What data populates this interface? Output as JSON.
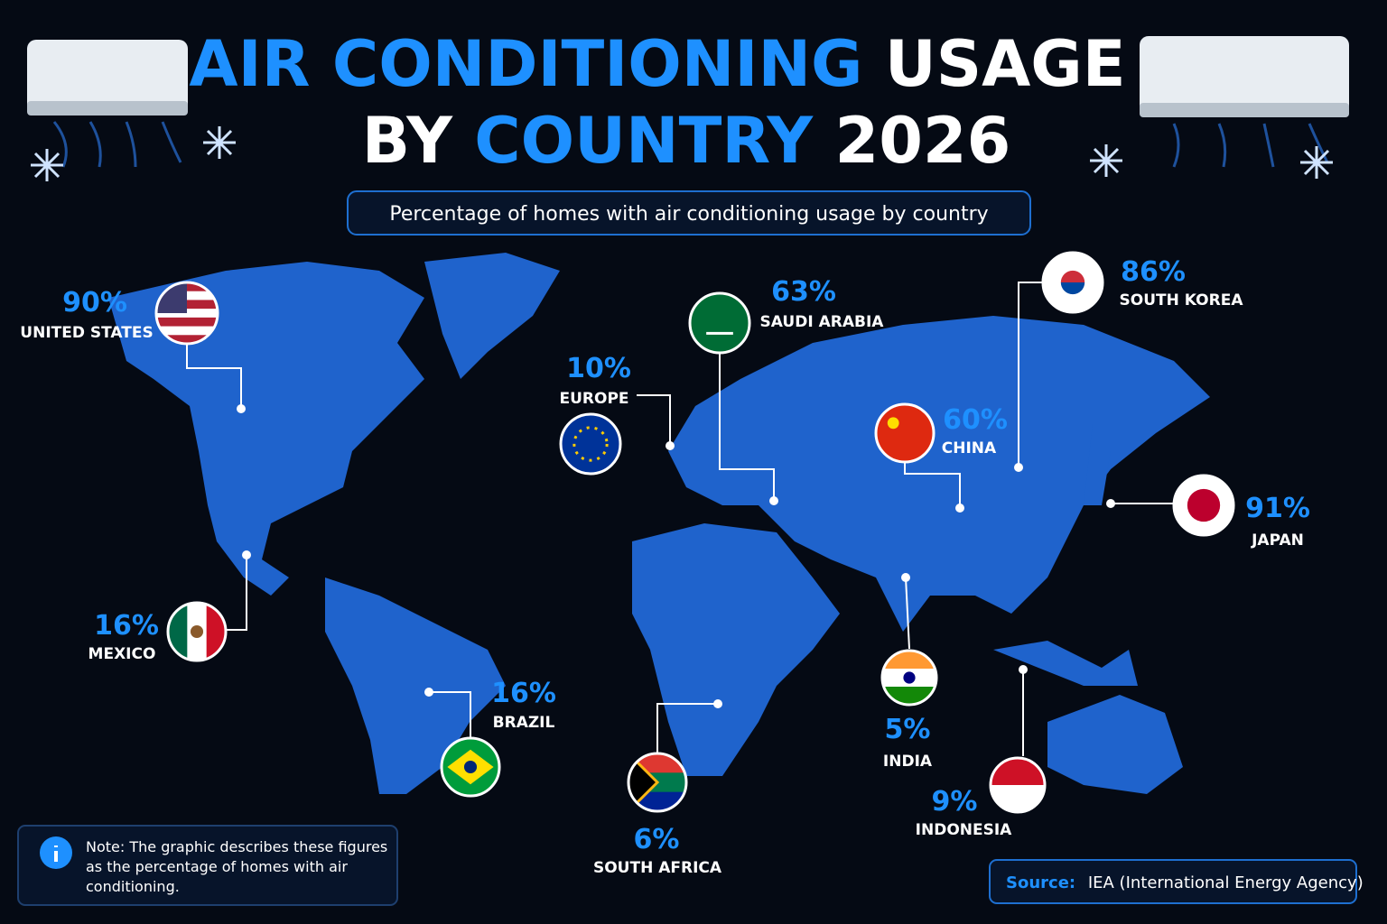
{
  "header": {
    "title_line1": [
      "AIR CONDITIONING",
      "USAGE"
    ],
    "title_line2": [
      "BY",
      "COUNTRY",
      "2026"
    ],
    "subtitle": "Percentage of homes with air conditioning usage by country"
  },
  "countries": [
    {
      "value": "90%",
      "name": "UNITED STATES"
    },
    {
      "value": "16%",
      "name": "MEXICO"
    },
    {
      "value": "16%",
      "name": "BRAZIL"
    },
    {
      "value": "10%",
      "name": "EUROPE"
    },
    {
      "value": "63%",
      "name": "SAUDI ARABIA"
    },
    {
      "value": "6%",
      "name": "SOUTH AFRICA"
    },
    {
      "value": "60%",
      "name": "CHINA"
    },
    {
      "value": "5%",
      "name": "INDIA"
    },
    {
      "value": "86%",
      "name": "SOUTH KOREA"
    },
    {
      "value": "91%",
      "name": "JAPAN"
    },
    {
      "value": "9%",
      "name": "INDONESIA"
    }
  ],
  "note": {
    "text": "Note: The graphic describes these figures as the percentage of homes with air conditioning."
  },
  "source": {
    "label": "Source:",
    "text": "IEA (International Energy Agency)"
  }
}
